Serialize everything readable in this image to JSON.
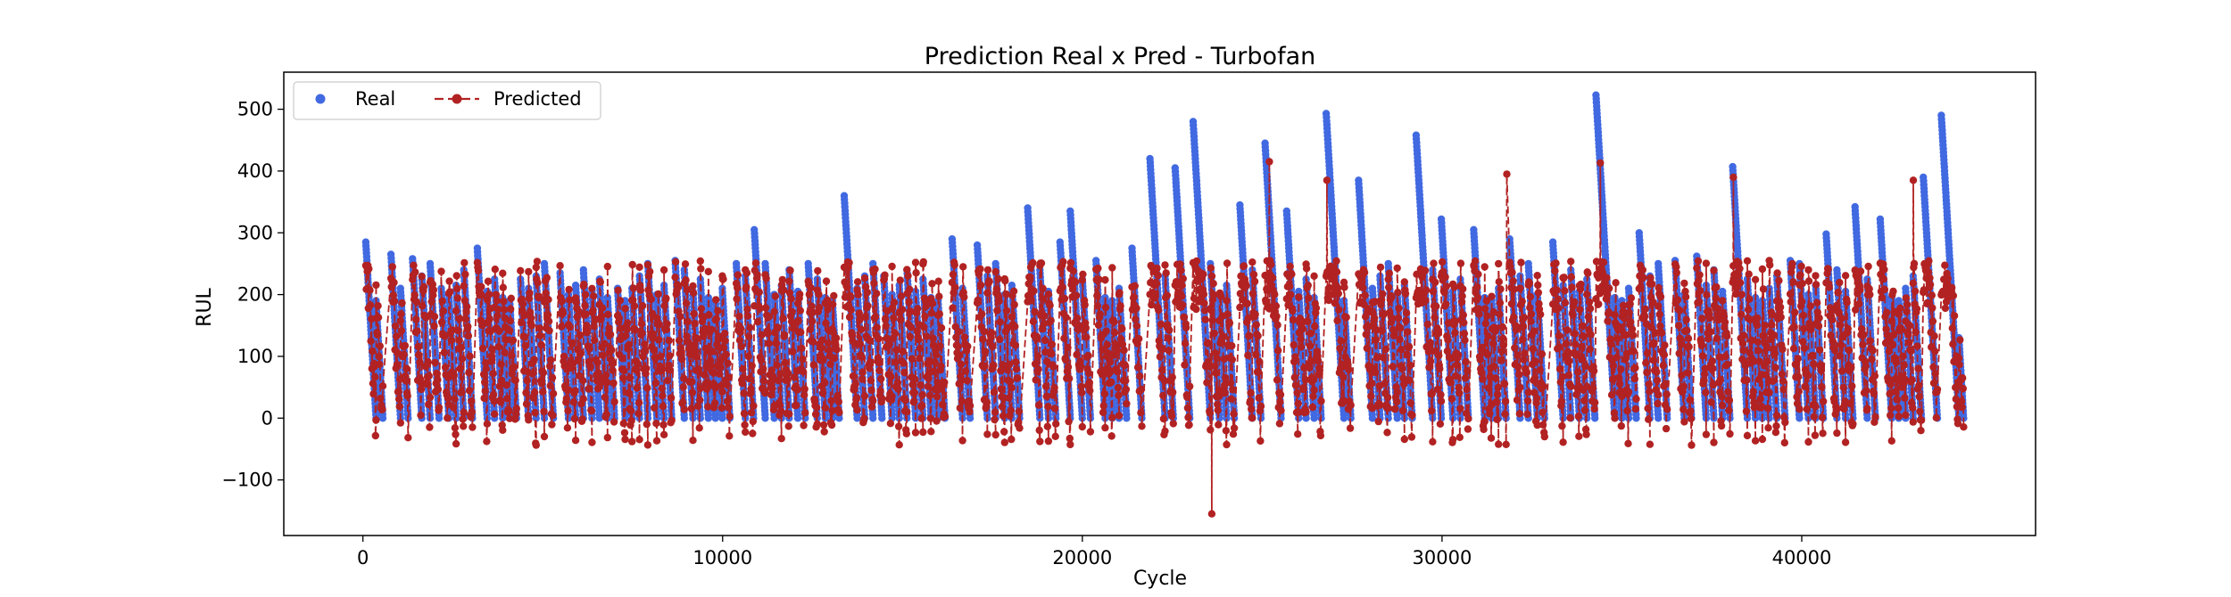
{
  "chart_data": {
    "type": "line",
    "title": "Prediction Real x Pred - Turbofan",
    "xlabel": "Cycle",
    "ylabel": "RUL",
    "xlim": [
      -2200,
      46500
    ],
    "ylim": [
      -190,
      560
    ],
    "xticks": [
      0,
      10000,
      20000,
      30000,
      40000
    ],
    "xtick_labels": [
      "0",
      "10000",
      "20000",
      "30000",
      "40000"
    ],
    "yticks": [
      -100,
      0,
      100,
      200,
      300,
      400,
      500
    ],
    "ytick_labels": [
      "−100",
      "0",
      "100",
      "200",
      "300",
      "400",
      "500"
    ],
    "grid": false,
    "legend_position": "upper-left",
    "x_max": 44500,
    "series": [
      {
        "name": "Real",
        "style": "markers",
        "color": "#4169e1",
        "engine_peaks": [
          {
            "x": 200,
            "peak": 285
          },
          {
            "x": 900,
            "peak": 265
          },
          {
            "x": 1500,
            "peak": 258
          },
          {
            "x": 2300,
            "peak": 210
          },
          {
            "x": 3300,
            "peak": 275
          },
          {
            "x": 4500,
            "peak": 225
          },
          {
            "x": 5600,
            "peak": 235
          },
          {
            "x": 7200,
            "peak": 210
          },
          {
            "x": 8800,
            "peak": 255
          },
          {
            "x": 10500,
            "peak": 250
          },
          {
            "x": 11000,
            "peak": 305
          },
          {
            "x": 12500,
            "peak": 250
          },
          {
            "x": 13500,
            "peak": 360
          },
          {
            "x": 14600,
            "peak": 230
          },
          {
            "x": 16500,
            "peak": 290
          },
          {
            "x": 17200,
            "peak": 280
          },
          {
            "x": 18600,
            "peak": 340
          },
          {
            "x": 19500,
            "peak": 285
          },
          {
            "x": 19700,
            "peak": 335
          },
          {
            "x": 20500,
            "peak": 255
          },
          {
            "x": 21500,
            "peak": 275
          },
          {
            "x": 22000,
            "peak": 420
          },
          {
            "x": 22700,
            "peak": 405
          },
          {
            "x": 23200,
            "peak": 480
          },
          {
            "x": 24500,
            "peak": 345
          },
          {
            "x": 25200,
            "peak": 445
          },
          {
            "x": 25800,
            "peak": 335
          },
          {
            "x": 26900,
            "peak": 493
          },
          {
            "x": 27800,
            "peak": 385
          },
          {
            "x": 29400,
            "peak": 458
          },
          {
            "x": 30100,
            "peak": 322
          },
          {
            "x": 31000,
            "peak": 305
          },
          {
            "x": 32000,
            "peak": 290
          },
          {
            "x": 33200,
            "peak": 285
          },
          {
            "x": 34400,
            "peak": 523
          },
          {
            "x": 35600,
            "peak": 300
          },
          {
            "x": 36600,
            "peak": 255
          },
          {
            "x": 37200,
            "peak": 262
          },
          {
            "x": 38200,
            "peak": 407
          },
          {
            "x": 39800,
            "peak": 255
          },
          {
            "x": 40800,
            "peak": 298
          },
          {
            "x": 41600,
            "peak": 342
          },
          {
            "x": 42300,
            "peak": 322
          },
          {
            "x": 43500,
            "peak": 390
          },
          {
            "x": 44000,
            "peak": 490
          }
        ]
      },
      {
        "name": "Predicted",
        "style": "line-markers",
        "color": "#b22222",
        "typical_range": [
          -50,
          260
        ],
        "overall_min": -155,
        "overall_max": 415,
        "notable_points": [
          {
            "x": 23600,
            "y": -155
          },
          {
            "x": 25200,
            "y": 415
          },
          {
            "x": 26800,
            "y": 385
          },
          {
            "x": 31800,
            "y": 395
          },
          {
            "x": 34400,
            "y": 413
          },
          {
            "x": 38100,
            "y": 390
          },
          {
            "x": 43100,
            "y": 385
          }
        ]
      }
    ]
  }
}
